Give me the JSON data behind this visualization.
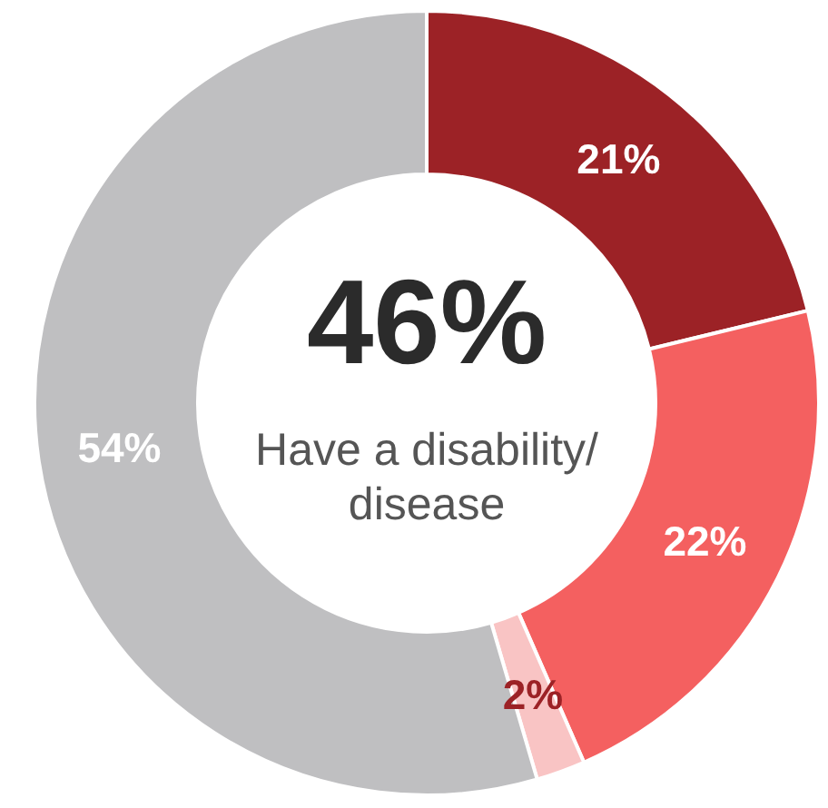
{
  "chart_data": {
    "type": "donut",
    "categories": [
      null,
      null,
      null,
      null
    ],
    "values": [
      21,
      22,
      2,
      54
    ],
    "colors": [
      "#9c2226",
      "#f46060",
      "#f9c4c4",
      "#bfbfc1"
    ],
    "value_labels": [
      "21%",
      "22%",
      "2%",
      "54%"
    ],
    "annotations": [
      "46%",
      "Have a disability/ disease"
    ]
  }
}
